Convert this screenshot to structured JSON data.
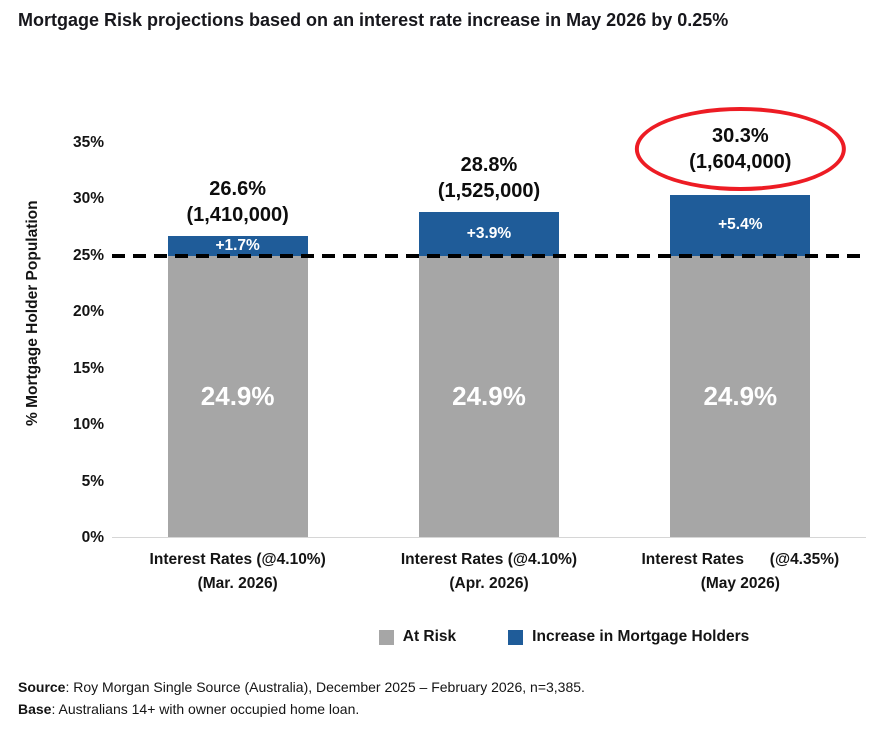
{
  "title": "Mortgage Risk projections based on an interest rate increase in May 2026 by 0.25%",
  "chart_data": {
    "type": "bar",
    "stacked": true,
    "title": "Mortgage Risk projections based on an interest rate increase in May 2026 by 0.25%",
    "xlabel": "",
    "ylabel": "% Mortgage Holder Population",
    "ylim": [
      0,
      39.8
    ],
    "grid": false,
    "legend_position": "bottom",
    "yticks": [
      "0%",
      "5%",
      "10%",
      "15%",
      "20%",
      "25%",
      "30%",
      "35%"
    ],
    "ytick_values": [
      0,
      5,
      10,
      15,
      20,
      25,
      30,
      35
    ],
    "dashed_line_value": 24.9,
    "categories": [
      {
        "line1": "Interest Rates (@4.10%)",
        "line2": "(Mar. 2026)"
      },
      {
        "line1": "Interest Rates (@4.10%)",
        "line2": "(Apr. 2026)"
      },
      {
        "line1": "Interest Rates      (@4.35%)",
        "line2": "(May 2026)"
      }
    ],
    "series": [
      {
        "name": "At Risk",
        "color": "#A6A6A6",
        "values": [
          24.9,
          24.9,
          24.9
        ],
        "labels": [
          "24.9%",
          "24.9%",
          "24.9%"
        ]
      },
      {
        "name": "Increase in Mortgage Holders",
        "color": "#1F5C99",
        "values": [
          1.7,
          3.9,
          5.4
        ],
        "labels": [
          "+1.7%",
          "+3.9%",
          "+5.4%"
        ]
      }
    ],
    "totals": [
      {
        "pct": "26.6%",
        "count": "(1,410,000)",
        "highlighted": false
      },
      {
        "pct": "28.8%",
        "count": "(1,525,000)",
        "highlighted": false
      },
      {
        "pct": "30.3%",
        "count": "(1,604,000)",
        "highlighted": true
      }
    ],
    "legend": [
      {
        "label": "At Risk",
        "color": "#A6A6A6"
      },
      {
        "label": "Increase in Mortgage Holders",
        "color": "#1F5C99"
      }
    ]
  },
  "colors": {
    "at_risk": "#A6A6A6",
    "increase": "#1F5C99",
    "highlight_circle": "#ED1C24",
    "dashed_line": "#000000"
  },
  "footer": {
    "source_label": "Source",
    "source_text": ": Roy Morgan Single Source (Australia), December 2025 – February 2026, n=3,385.",
    "base_label": "Base",
    "base_text": ": Australians 14+ with owner occupied home loan."
  }
}
